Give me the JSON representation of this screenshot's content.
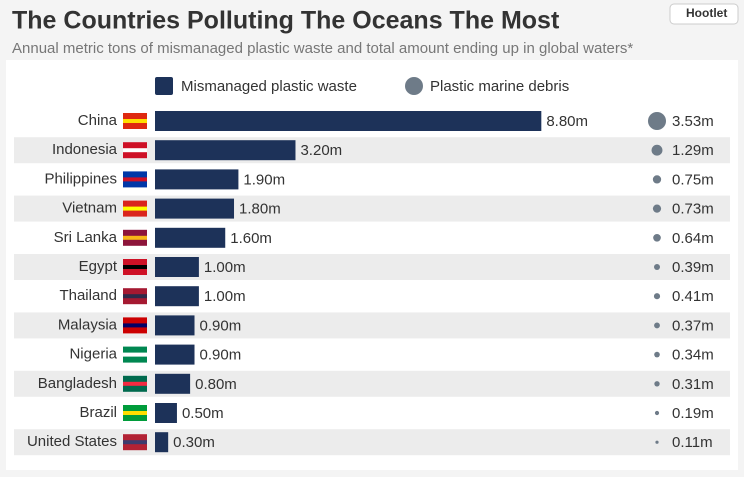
{
  "chart_data": {
    "type": "bar",
    "title": "The Countries Polluting The Oceans The Most",
    "subtitle": "Annual metric tons of mismanaged plastic waste and total amount ending up in global waters*",
    "brand": "Hootlet",
    "categories": [
      "China",
      "Indonesia",
      "Philippines",
      "Vietnam",
      "Sri Lanka",
      "Egypt",
      "Thailand",
      "Malaysia",
      "Nigeria",
      "Bangladesh",
      "Brazil",
      "United States"
    ],
    "series": [
      {
        "name": "Mismanaged plastic waste",
        "color": "#1d3259",
        "mark": "bar",
        "values": [
          8.8,
          3.2,
          1.9,
          1.8,
          1.6,
          1.0,
          1.0,
          0.9,
          0.9,
          0.8,
          0.5,
          0.3
        ],
        "value_labels": [
          "8.80m",
          "3.20m",
          "1.90m",
          "1.80m",
          "1.60m",
          "1.00m",
          "1.00m",
          "0.90m",
          "0.90m",
          "0.80m",
          "0.50m",
          "0.30m"
        ]
      },
      {
        "name": "Plastic marine debris",
        "color": "#6e7b88",
        "mark": "bubble",
        "values": [
          3.53,
          1.29,
          0.75,
          0.73,
          0.64,
          0.39,
          0.41,
          0.37,
          0.34,
          0.31,
          0.19,
          0.11
        ],
        "value_labels": [
          "3.53m",
          "1.29m",
          "0.75m",
          "0.73m",
          "0.64m",
          "0.39m",
          "0.41m",
          "0.37m",
          "0.34m",
          "0.31m",
          "0.19m",
          "0.11m"
        ]
      }
    ]
  }
}
